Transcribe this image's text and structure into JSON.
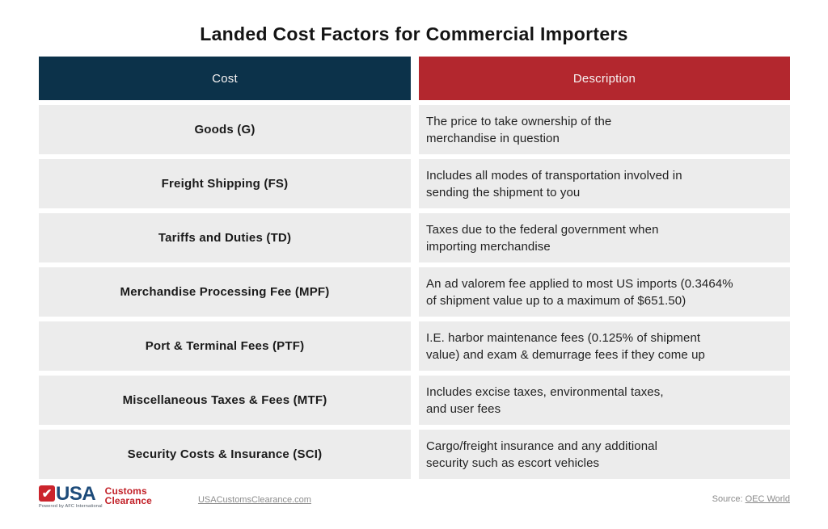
{
  "title": "Landed Cost Factors for Commercial Importers",
  "colors": {
    "cost_header_bg": "#0c324a",
    "description_header_bg": "#b3272e",
    "row_bg": "#ececec",
    "logo_blue": "#1d4b7a",
    "logo_red": "#cb242c"
  },
  "chart_data": {
    "type": "table",
    "title": "Landed Cost Factors for Commercial Importers",
    "columns": [
      "Cost",
      "Description"
    ],
    "rows": [
      [
        "Goods (G)",
        "The price to take ownership of the merchandise in question"
      ],
      [
        "Freight Shipping (FS)",
        "Includes all modes of transportation involved in sending the shipment to you"
      ],
      [
        "Tariffs and Duties (TD)",
        "Taxes due to the federal government when importing merchandise"
      ],
      [
        "Merchandise Processing Fee (MPF)",
        "An ad valorem fee applied to most US imports (0.3464% of shipment value up to a maximum of $651.50)"
      ],
      [
        "Port & Terminal Fees (PTF)",
        "I.E. harbor maintenance fees (0.125% of shipment value) and exam & demurrage fees if they come up"
      ],
      [
        "Miscellaneous Taxes & Fees (MTF)",
        "Includes excise taxes, environmental taxes, and user fees"
      ],
      [
        "Security Costs & Insurance (SCI)",
        "Cargo/freight insurance and any additional security such as escort vehicles"
      ]
    ]
  },
  "table": {
    "headers": [
      "Cost",
      "Description"
    ],
    "rows": [
      {
        "cost": "Goods (G)",
        "desc_line1": "The price to take ownership of the",
        "desc_line2": "merchandise in question"
      },
      {
        "cost": "Freight Shipping (FS)",
        "desc_line1": "Includes all modes of transportation involved in",
        "desc_line2": "sending the shipment to you"
      },
      {
        "cost": "Tariffs and Duties (TD)",
        "desc_line1": "Taxes due to the federal government when",
        "desc_line2": "importing merchandise"
      },
      {
        "cost": "Merchandise Processing Fee (MPF)",
        "desc_line1": "An ad valorem fee applied to most US imports (0.3464%",
        "desc_line2": "of shipment value up to a maximum of $651.50)"
      },
      {
        "cost": "Port & Terminal Fees (PTF)",
        "desc_line1": "I.E. harbor maintenance fees (0.125% of shipment",
        "desc_line2": "value) and exam & demurrage fees if they come up"
      },
      {
        "cost": "Miscellaneous Taxes & Fees (MTF)",
        "desc_line1": "Includes excise taxes, environmental taxes,",
        "desc_line2": "and user fees"
      },
      {
        "cost": "Security Costs & Insurance (SCI)",
        "desc_line1": "Cargo/freight insurance and any additional",
        "desc_line2": "security such as escort vehicles"
      }
    ]
  },
  "footer": {
    "logo": {
      "check": "✔",
      "usa": "USA",
      "brand_line1": "Customs",
      "brand_line2": "Clearance",
      "powered_by": "Powered by AFC International"
    },
    "website": "USACustomsClearance.com",
    "source_label": "Source: ",
    "source_link": "OEC World"
  }
}
